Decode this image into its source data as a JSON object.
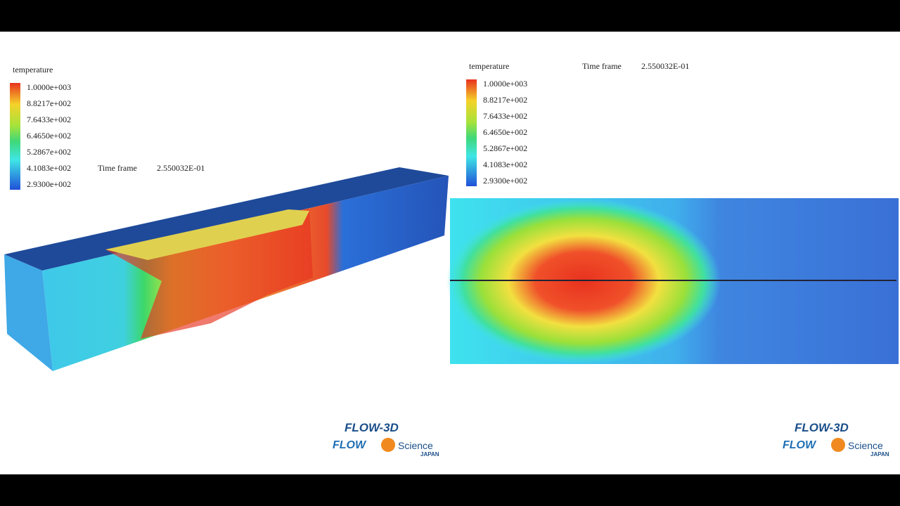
{
  "panels": [
    {
      "legend": {
        "title": "temperature",
        "labels": [
          "1.0000e+003",
          "8.8217e+002",
          "7.6433e+002",
          "6.4650e+002",
          "5.2867e+002",
          "4.1083e+002",
          "2.9300e+002"
        ]
      },
      "time_frame": {
        "label": "Time frame",
        "value": "2.550032E-01"
      },
      "logo": {
        "product": "FLOW-3D",
        "company": "FLOW",
        "company_suffix": "Science",
        "region": "JAPAN"
      }
    },
    {
      "legend": {
        "title": "temperature",
        "labels": [
          "1.0000e+003",
          "8.8217e+002",
          "7.6433e+002",
          "6.4650e+002",
          "5.2867e+002",
          "4.1083e+002",
          "2.9300e+002"
        ]
      },
      "time_frame": {
        "label": "Time frame",
        "value": "2.550032E-01"
      },
      "logo": {
        "product": "FLOW-3D",
        "company": "FLOW",
        "company_suffix": "Science",
        "region": "JAPAN"
      }
    }
  ]
}
